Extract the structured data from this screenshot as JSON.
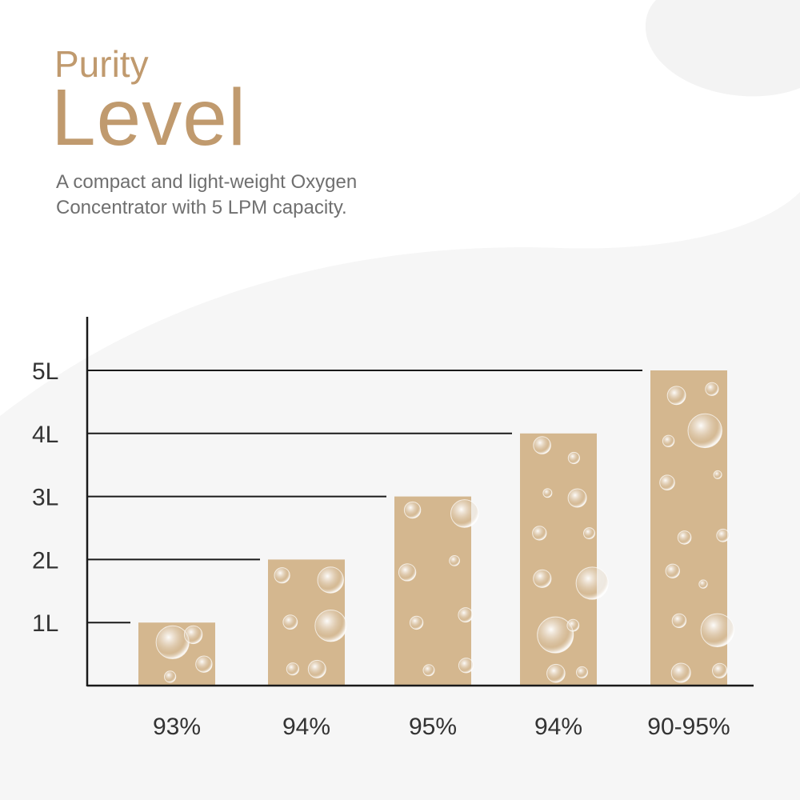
{
  "header": {
    "title_line1": "Purity",
    "title_line2": "Level",
    "description": "A compact and light-weight Oxygen Concentrator with 5 LPM capacity."
  },
  "colors": {
    "accent": "#c09a6e",
    "bar": "#d4b78f",
    "axis": "#1a1a1a",
    "text": "#333333",
    "subtitle": "#6f6f6f",
    "background": "#ffffff",
    "background_shape": "#f5f5f5"
  },
  "chart_data": {
    "type": "bar",
    "title": "",
    "xlabel": "",
    "ylabel": "",
    "categories": [
      "93%",
      "94%",
      "95%",
      "94%",
      "90-95%"
    ],
    "values": [
      1,
      2,
      3,
      4,
      5
    ],
    "y_ticks": [
      {
        "value": 1,
        "label": "1L"
      },
      {
        "value": 2,
        "label": "2L"
      },
      {
        "value": 3,
        "label": "3L"
      },
      {
        "value": 4,
        "label": "4L"
      },
      {
        "value": 5,
        "label": "5L"
      }
    ],
    "ylim": [
      0,
      5
    ],
    "grid": false,
    "legend": "none",
    "bar_decoration": "bubbles"
  }
}
